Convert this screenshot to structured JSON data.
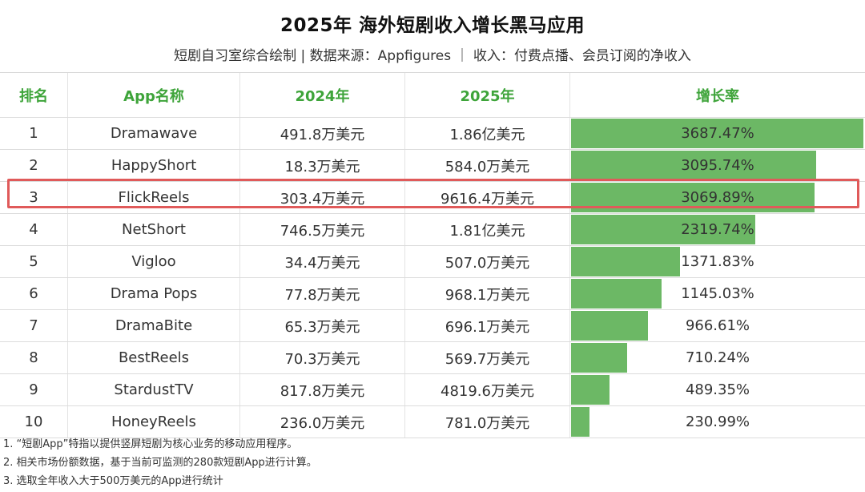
{
  "title": "2025年 海外短剧收入增长黑马应用",
  "subtitle": "短剧自习室综合绘制 | 数据来源：Appfigures ｜ 收入：付费点播、会员订阅的净收入",
  "headers": {
    "rank": "排名",
    "name": "App名称",
    "y2024": "2024年",
    "y2025": "2025年",
    "growth": "增长率"
  },
  "highlight_row": 3,
  "colors": {
    "header_text": "#3ea43a",
    "bar": "#6cb865",
    "highlight_border": "#e05a5a"
  },
  "chart_data": {
    "type": "table",
    "max_growth": 3687.47,
    "rows": [
      {
        "rank": "1",
        "name": "Dramawave",
        "y2024": "491.8万美元",
        "y2025": "1.86亿美元",
        "growth_text": "3687.47%",
        "growth": 3687.47
      },
      {
        "rank": "2",
        "name": "HappyShort",
        "y2024": "18.3万美元",
        "y2025": "584.0万美元",
        "growth_text": "3095.74%",
        "growth": 3095.74
      },
      {
        "rank": "3",
        "name": "FlickReels",
        "y2024": "303.4万美元",
        "y2025": "9616.4万美元",
        "growth_text": "3069.89%",
        "growth": 3069.89
      },
      {
        "rank": "4",
        "name": "NetShort",
        "y2024": "746.5万美元",
        "y2025": "1.81亿美元",
        "growth_text": "2319.74%",
        "growth": 2319.74
      },
      {
        "rank": "5",
        "name": "Vigloo",
        "y2024": "34.4万美元",
        "y2025": "507.0万美元",
        "growth_text": "1371.83%",
        "growth": 1371.83
      },
      {
        "rank": "6",
        "name": "Drama Pops",
        "y2024": "77.8万美元",
        "y2025": "968.1万美元",
        "growth_text": "1145.03%",
        "growth": 1145.03
      },
      {
        "rank": "7",
        "name": "DramaBite",
        "y2024": "65.3万美元",
        "y2025": "696.1万美元",
        "growth_text": "966.61%",
        "growth": 966.61
      },
      {
        "rank": "8",
        "name": "BestReels",
        "y2024": "70.3万美元",
        "y2025": "569.7万美元",
        "growth_text": "710.24%",
        "growth": 710.24
      },
      {
        "rank": "9",
        "name": "StardustTV",
        "y2024": "817.8万美元",
        "y2025": "4819.6万美元",
        "growth_text": "489.35%",
        "growth": 489.35
      },
      {
        "rank": "10",
        "name": "HoneyReels",
        "y2024": "236.0万美元",
        "y2025": "781.0万美元",
        "growth_text": "230.99%",
        "growth": 230.99
      }
    ]
  },
  "notes": [
    "1. “短剧App”特指以提供竖屏短剧为核心业务的移动应用程序。",
    "2. 相关市场份额数据，基于当前可监测的280款短剧App进行计算。",
    "3. 选取全年收入大于500万美元的App进行统计"
  ]
}
